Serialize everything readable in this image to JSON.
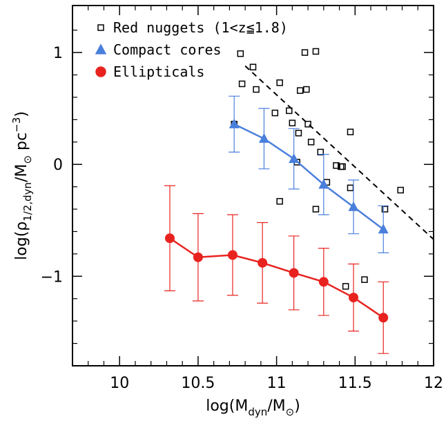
{
  "chart_data": {
    "type": "scatter",
    "xlabel": [
      "log(M",
      "dyn",
      "/M",
      "⊙",
      ")"
    ],
    "ylabel": [
      "log(",
      "ρ",
      "1/2,dyn",
      "/M",
      "⊙",
      " pc",
      "−3",
      ")"
    ],
    "xlim": [
      9.7,
      12
    ],
    "ylim": [
      -1.8,
      1.42
    ],
    "xticks": [
      10,
      10.5,
      11,
      11.5,
      12
    ],
    "yticks": [
      1,
      0,
      {
        "value": -1,
        "label": "−1"
      }
    ],
    "xminorticks": [
      9.8,
      9.9,
      10.1,
      10.2,
      10.3,
      10.4,
      10.6,
      10.7,
      10.8,
      10.9,
      11.1,
      11.2,
      11.3,
      11.4,
      11.6,
      11.7,
      11.8,
      11.9
    ],
    "yminorticks": [
      -1.6,
      -1.4,
      -1.2,
      -0.8,
      -0.6,
      -0.4,
      -0.2,
      0.2,
      0.4,
      0.6,
      0.8,
      1.2
    ],
    "series": [
      {
        "name": "Red nuggets (1<z≦1.8)",
        "color": "#000000",
        "marker": "square",
        "x": [
          10.77,
          10.78,
          10.85,
          10.87,
          11.02,
          10.99,
          11.08,
          11.1,
          11.14,
          11.15,
          11.19,
          11.18,
          11.25,
          11.2,
          11.22,
          11.28,
          11.13,
          11.38,
          11.41,
          11.42,
          11.32,
          11.25,
          11.02,
          11.47,
          11.47,
          11.69,
          11.79,
          11.44,
          11.56,
          10.73
        ],
        "values": [
          0.99,
          0.72,
          0.87,
          0.67,
          0.73,
          0.46,
          0.48,
          0.37,
          0.28,
          0.66,
          0.67,
          1.0,
          1.01,
          0.36,
          0.2,
          0.11,
          0.02,
          -0.01,
          -0.02,
          -0.02,
          -0.16,
          -0.4,
          -0.33,
          0.29,
          -0.21,
          -0.4,
          -0.23,
          -1.09,
          -1.03,
          0.36
        ]
      },
      {
        "name": "Compact cores",
        "color": "#4a7fdc",
        "marker": "triangle",
        "x": [
          10.73,
          10.92,
          11.11,
          11.3,
          11.49,
          11.68
        ],
        "values": [
          0.36,
          0.23,
          0.05,
          -0.18,
          -0.38,
          -0.58
        ],
        "errors": [
          0.25,
          0.27,
          0.27,
          0.27,
          0.24,
          0.21
        ]
      },
      {
        "name": "Ellipticals",
        "color": "#e8231f",
        "marker": "circle",
        "x": [
          10.32,
          10.5,
          10.72,
          10.91,
          11.11,
          11.3,
          11.49,
          11.68
        ],
        "values": [
          -0.66,
          -0.83,
          -0.81,
          -0.88,
          -0.97,
          -1.05,
          -1.19,
          -1.37
        ],
        "errors": [
          0.47,
          0.39,
          0.36,
          0.36,
          0.33,
          0.3,
          0.3,
          0.32
        ]
      }
    ],
    "dashed_line": {
      "x": [
        10.8,
        12
      ],
      "values": [
        0.88,
        -0.67
      ]
    }
  }
}
